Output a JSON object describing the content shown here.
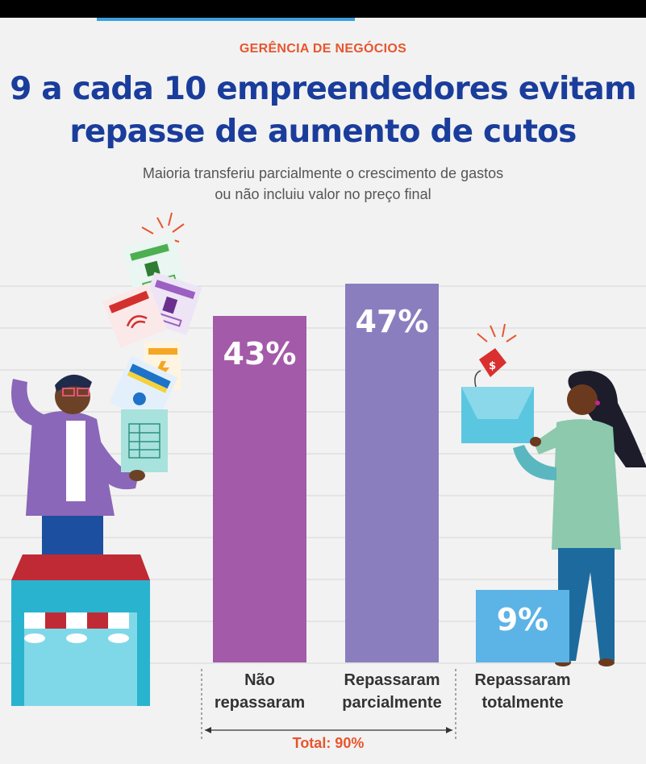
{
  "header": {
    "kicker": "GERÊNCIA DE NEGÓCIOS",
    "title_line1": "9 a cada 10 empreendedores evitam",
    "title_line2": "repasse de aumento de cutos",
    "subtitle_line1": "Maioria transferiu parcialmente o crescimento de gastos",
    "subtitle_line2": "ou não incluiu valor no preço final"
  },
  "chart_data": {
    "type": "bar",
    "categories": [
      [
        "Não",
        "repassaram"
      ],
      [
        "Repassaram",
        "parcialmente"
      ],
      [
        "Repassaram",
        "totalmente"
      ]
    ],
    "values": [
      43,
      47,
      9
    ],
    "value_labels": [
      "43%",
      "47%",
      "9%"
    ],
    "colors": [
      "#a35aa8",
      "#8b7ebe",
      "#5bb3e6"
    ],
    "ylim": [
      0,
      50
    ],
    "grid": true,
    "bracket_label": "Total: 90%"
  },
  "colors": {
    "kicker": "#e8552e",
    "title": "#1a3d9c",
    "background": "#f2f2f2"
  },
  "illustrations": [
    "man-with-bills-illustration",
    "shop-awning-illustration",
    "woman-with-bag-illustration"
  ]
}
